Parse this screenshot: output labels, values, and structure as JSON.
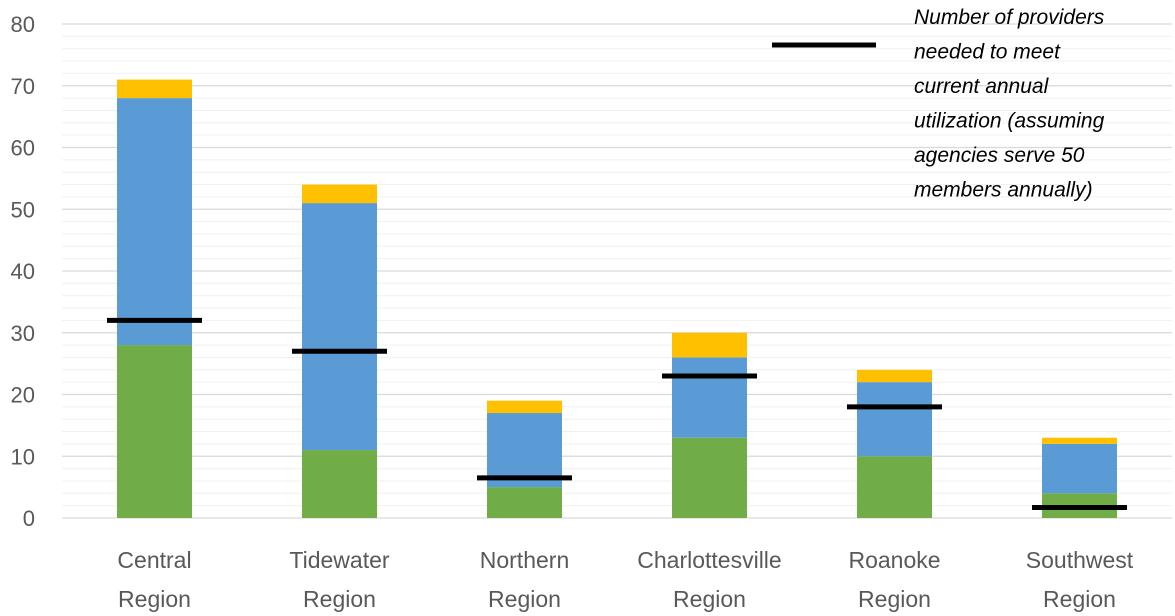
{
  "chart_data": {
    "type": "bar",
    "stacked": true,
    "categories": [
      [
        "Central",
        "Region"
      ],
      [
        "Tidewater",
        "Region"
      ],
      [
        "Northern",
        "Region"
      ],
      [
        "Charlottesville",
        "Region"
      ],
      [
        "Roanoke",
        "Region"
      ],
      [
        "Southwest",
        "Region"
      ]
    ],
    "series": [
      {
        "color": "#70ad47",
        "values": [
          28,
          11,
          5,
          13,
          10,
          4
        ]
      },
      {
        "color": "#5b9bd5",
        "values": [
          40,
          40,
          12,
          13,
          12,
          8
        ]
      },
      {
        "color": "#ffc000",
        "values": [
          3,
          3,
          2,
          4,
          2,
          1
        ]
      }
    ],
    "target_line": {
      "name": "Number of providers needed to meet current annual utilization (assuming agencies serve 50 members annually)",
      "legend_lines": [
        "Number of providers",
        "needed to meet",
        "current annual",
        "utilization (assuming",
        "agencies serve 50",
        "members annually)"
      ],
      "color": "#000000",
      "values": [
        32,
        27,
        6.5,
        23,
        18,
        1.7
      ]
    },
    "yticks": [
      0,
      10,
      20,
      30,
      40,
      50,
      60,
      70,
      80
    ],
    "ylim": [
      0,
      80
    ],
    "minor_grid_step": 2,
    "grid": true,
    "legend_position": "top-right"
  }
}
